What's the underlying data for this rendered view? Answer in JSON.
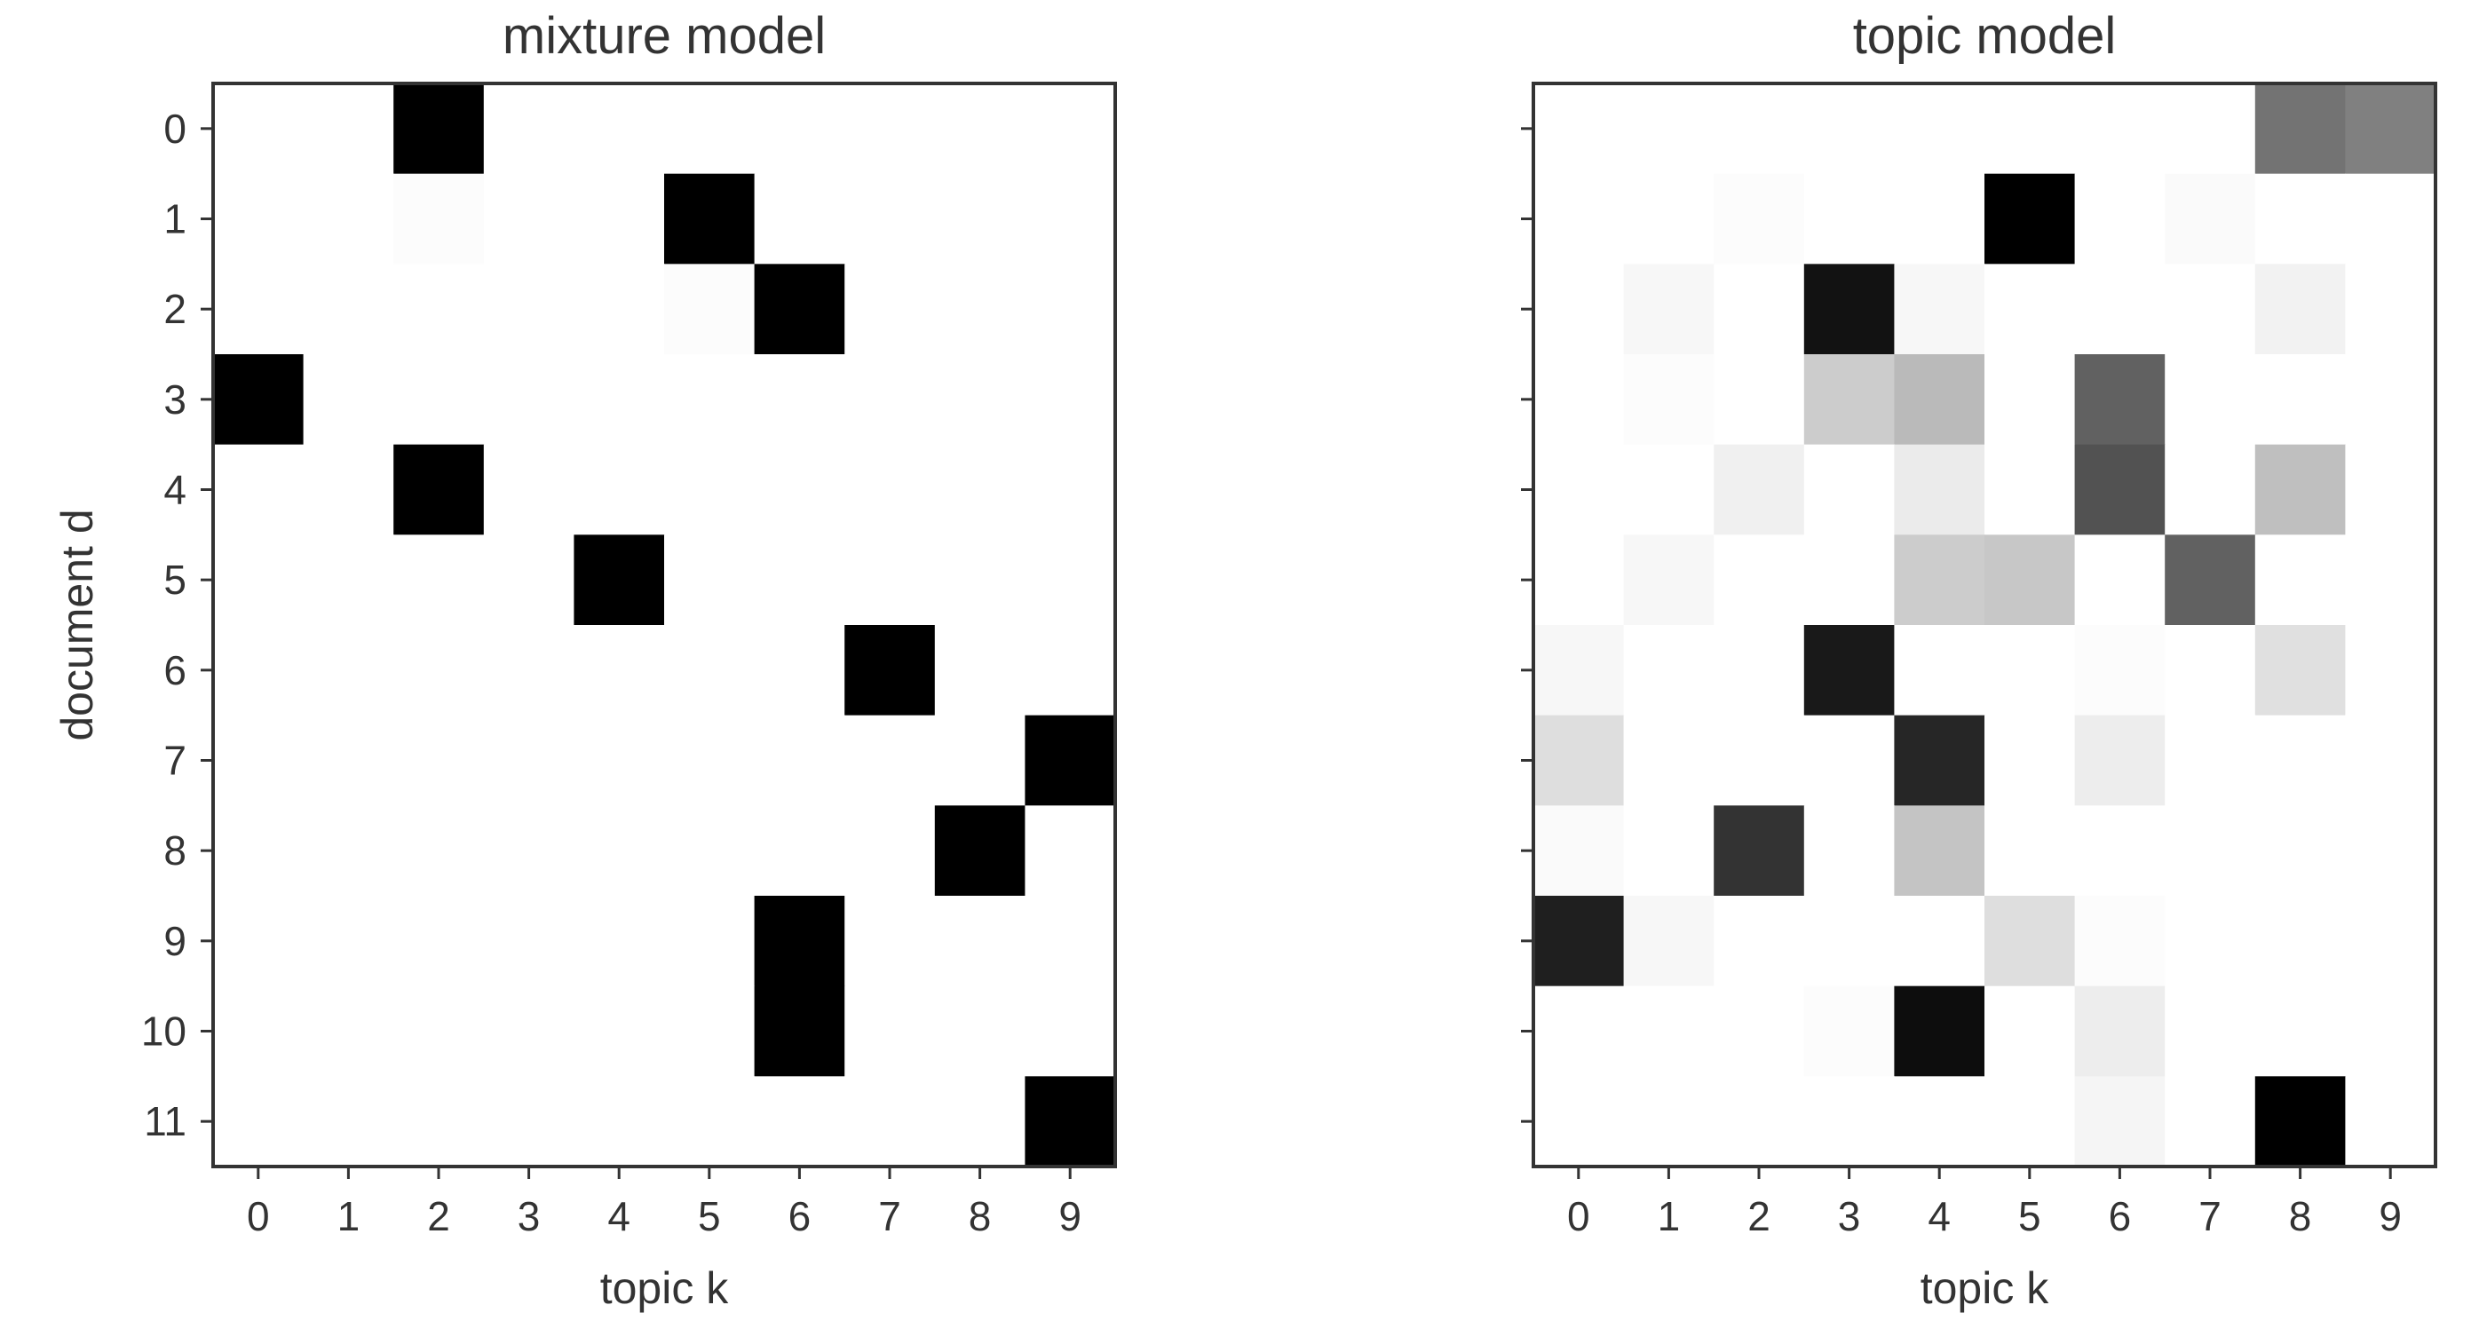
{
  "chart_data": [
    {
      "type": "heatmap",
      "title": "mixture model",
      "xlabel": "topic k",
      "ylabel": "document d",
      "x_ticks": [
        "0",
        "1",
        "2",
        "3",
        "4",
        "5",
        "6",
        "7",
        "8",
        "9"
      ],
      "y_ticks": [
        "0",
        "1",
        "2",
        "3",
        "4",
        "5",
        "6",
        "7",
        "8",
        "9",
        "10",
        "11"
      ],
      "colormap": "greys",
      "vrange": [
        0,
        1
      ],
      "values": [
        [
          0,
          0,
          1,
          0,
          0,
          0,
          0,
          0,
          0,
          0
        ],
        [
          0,
          0,
          0.01,
          0,
          0,
          1,
          0,
          0,
          0,
          0
        ],
        [
          0,
          0,
          0,
          0,
          0,
          0.01,
          1,
          0,
          0,
          0
        ],
        [
          1,
          0,
          0,
          0,
          0,
          0,
          0,
          0,
          0,
          0
        ],
        [
          0,
          0,
          1,
          0,
          0,
          0,
          0,
          0,
          0,
          0
        ],
        [
          0,
          0,
          0,
          0,
          1,
          0,
          0,
          0,
          0,
          0
        ],
        [
          0,
          0,
          0,
          0,
          0,
          0,
          0,
          1,
          0,
          0
        ],
        [
          0,
          0,
          0,
          0,
          0,
          0,
          0,
          0,
          0,
          1
        ],
        [
          0,
          0,
          0,
          0,
          0,
          0,
          0,
          0,
          1,
          0
        ],
        [
          0,
          0,
          0,
          0,
          0,
          0,
          1,
          0,
          0,
          0
        ],
        [
          0,
          0,
          0,
          0,
          0,
          0,
          1,
          0,
          0,
          0
        ],
        [
          0,
          0,
          0,
          0,
          0,
          0,
          0,
          0,
          0,
          1
        ]
      ]
    },
    {
      "type": "heatmap",
      "title": "topic model",
      "xlabel": "topic k",
      "ylabel": "",
      "x_ticks": [
        "0",
        "1",
        "2",
        "3",
        "4",
        "5",
        "6",
        "7",
        "8",
        "9"
      ],
      "y_ticks": [
        "",
        "",
        "",
        "",
        "",
        "",
        "",
        "",
        "",
        "",
        "",
        ""
      ],
      "colormap": "greys",
      "vrange": [
        0,
        1
      ],
      "values": [
        [
          0,
          0,
          0,
          0,
          0,
          0,
          0,
          0,
          0.55,
          0.5
        ],
        [
          0,
          0,
          0.01,
          0,
          0,
          1,
          0,
          0.02,
          0,
          0
        ],
        [
          0,
          0.03,
          0,
          0.93,
          0.03,
          0,
          0,
          0,
          0.05,
          0
        ],
        [
          0,
          0.01,
          0,
          0.2,
          0.27,
          0,
          0.62,
          0,
          0,
          0
        ],
        [
          0,
          0,
          0.06,
          0,
          0.08,
          0,
          0.68,
          0,
          0.25,
          0
        ],
        [
          0,
          0.03,
          0,
          0,
          0.2,
          0.22,
          0,
          0.62,
          0,
          0
        ],
        [
          0.03,
          0,
          0,
          0.9,
          0,
          0,
          0.01,
          0,
          0.12,
          0
        ],
        [
          0.13,
          0,
          0,
          0,
          0.85,
          0,
          0.07,
          0,
          0,
          0
        ],
        [
          0.02,
          0,
          0.8,
          0,
          0.23,
          0,
          0,
          0,
          0,
          0
        ],
        [
          0.88,
          0.03,
          0,
          0,
          0,
          0.13,
          0.01,
          0,
          0,
          0
        ],
        [
          0,
          0,
          0,
          0.01,
          0.95,
          0,
          0.07,
          0,
          0,
          0
        ],
        [
          0,
          0,
          0,
          0,
          0,
          0,
          0.04,
          0,
          1,
          0
        ]
      ]
    }
  ]
}
